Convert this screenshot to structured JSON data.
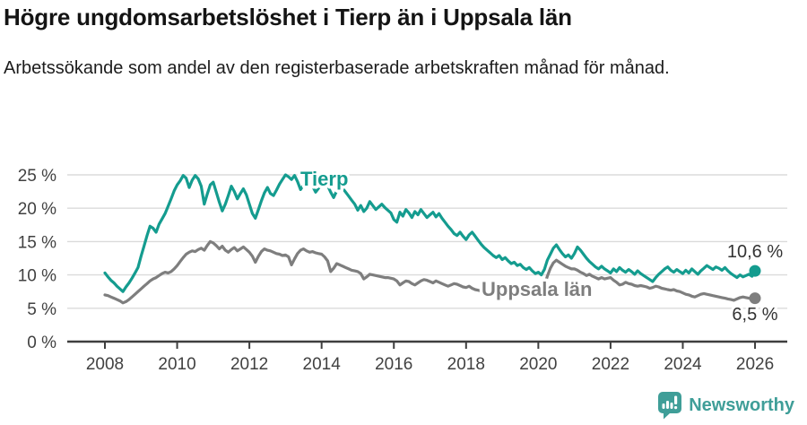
{
  "header": {
    "title": "Högre ungdomsarbetslöshet i Tierp än i Uppsala län",
    "subtitle": "Arbetssökande som andel av den registerbaserade arbetskraften månad för månad."
  },
  "colors": {
    "tierp": "#149c8f",
    "uppsala": "#7e7e7e",
    "grid": "#dbdbdb",
    "axis": "#3e3e3e",
    "tick_text": "#414141",
    "end_label_text": "#333333",
    "logo": "#3f9e98"
  },
  "chart_data": {
    "type": "line",
    "x_start_year": 2008,
    "points_per_year": 12,
    "x_tick_labels": [
      "2008",
      "2010",
      "2012",
      "2014",
      "2016",
      "2018",
      "2020",
      "2022",
      "2024",
      "2026"
    ],
    "y_tick_labels": [
      "0 %",
      "5 %",
      "10 %",
      "15 %",
      "20 %",
      "25 %"
    ],
    "y_tick_values": [
      0,
      5,
      10,
      15,
      20,
      25
    ],
    "ylim": [
      0,
      25
    ],
    "grid": "horizontal-only",
    "legend_position": "inline-labels",
    "series": [
      {
        "name": "Tierp",
        "label": "Tierp",
        "end_label": "10,6 %",
        "end_value": 10.6,
        "color_key": "tierp",
        "values": [
          10.3,
          9.7,
          9.2,
          8.8,
          8.3,
          7.9,
          7.5,
          8.2,
          8.8,
          9.5,
          10.3,
          11.1,
          12.8,
          14.3,
          15.9,
          17.3,
          17.0,
          16.4,
          17.6,
          18.4,
          19.2,
          20.3,
          21.4,
          22.6,
          23.5,
          24.1,
          24.9,
          24.5,
          23.1,
          24.2,
          24.9,
          24.4,
          23.3,
          20.6,
          22.1,
          23.5,
          23.9,
          22.4,
          20.9,
          19.6,
          20.6,
          21.9,
          23.3,
          22.5,
          21.4,
          22.2,
          22.9,
          22.0,
          20.6,
          19.2,
          18.5,
          19.8,
          21.1,
          22.3,
          23.1,
          22.2,
          21.9,
          22.7,
          23.6,
          24.3,
          25.0,
          24.7,
          24.3,
          24.9,
          24.0,
          22.8,
          23.5,
          24.8,
          24.6,
          23.3,
          22.4,
          23.0,
          23.6,
          24.4,
          23.4,
          22.4,
          21.6,
          22.6,
          23.5,
          23.0,
          22.4,
          21.8,
          21.2,
          20.6,
          19.7,
          20.4,
          19.5,
          20.0,
          21.0,
          20.4,
          19.8,
          20.2,
          20.6,
          20.1,
          19.7,
          19.3,
          18.3,
          17.9,
          19.4,
          18.8,
          19.8,
          19.3,
          18.6,
          19.5,
          19.0,
          19.8,
          19.2,
          18.6,
          19.0,
          19.4,
          18.7,
          19.2,
          18.5,
          17.9,
          17.3,
          16.8,
          16.2,
          15.9,
          16.4,
          15.8,
          15.3,
          16.0,
          16.4,
          15.8,
          15.2,
          14.6,
          14.1,
          13.7,
          13.3,
          12.9,
          12.6,
          12.9,
          12.3,
          12.6,
          12.1,
          11.7,
          11.9,
          11.4,
          11.6,
          11.1,
          10.8,
          11.1,
          10.6,
          10.2,
          10.4,
          10.0,
          10.8,
          12.2,
          13.1,
          14.0,
          14.5,
          13.8,
          13.2,
          12.7,
          13.0,
          12.5,
          13.2,
          14.2,
          13.7,
          13.1,
          12.5,
          12.0,
          11.6,
          11.2,
          10.9,
          11.3,
          10.9,
          10.6,
          10.3,
          10.9,
          10.5,
          11.1,
          10.7,
          10.4,
          10.8,
          10.5,
          10.1,
          10.6,
          10.2,
          9.9,
          9.6,
          9.3,
          9.0,
          9.6,
          10.1,
          10.5,
          10.9,
          11.2,
          10.7,
          10.4,
          10.8,
          10.5,
          10.2,
          10.7,
          10.3,
          10.9,
          10.5,
          10.1,
          10.6,
          11.0,
          11.4,
          11.1,
          10.8,
          11.2,
          11.0,
          10.7,
          11.1,
          10.6,
          10.2,
          9.9,
          9.6,
          10.0,
          9.7,
          9.9,
          10.1,
          9.8,
          10.6
        ]
      },
      {
        "name": "Uppsala län",
        "label": "Uppsala län",
        "end_label": "6,5 %",
        "end_value": 6.5,
        "color_key": "uppsala",
        "values": [
          7.0,
          6.9,
          6.7,
          6.5,
          6.3,
          6.1,
          5.8,
          6.0,
          6.3,
          6.7,
          7.1,
          7.5,
          7.9,
          8.3,
          8.7,
          9.1,
          9.4,
          9.6,
          9.9,
          10.2,
          10.4,
          10.3,
          10.5,
          10.9,
          11.4,
          12.0,
          12.6,
          13.1,
          13.4,
          13.6,
          13.5,
          13.8,
          14.0,
          13.7,
          14.4,
          15.0,
          14.8,
          14.4,
          13.9,
          14.3,
          13.7,
          13.4,
          13.8,
          14.1,
          13.6,
          13.9,
          14.2,
          13.8,
          13.4,
          12.8,
          11.9,
          12.8,
          13.5,
          13.9,
          13.7,
          13.6,
          13.4,
          13.2,
          13.1,
          12.9,
          13.0,
          12.7,
          11.5,
          12.4,
          13.2,
          13.7,
          13.9,
          13.6,
          13.4,
          13.5,
          13.3,
          13.2,
          13.1,
          12.7,
          12.1,
          10.5,
          11.0,
          11.7,
          11.5,
          11.3,
          11.1,
          10.9,
          10.7,
          10.6,
          10.5,
          10.2,
          9.4,
          9.7,
          10.1,
          10.0,
          9.9,
          9.8,
          9.7,
          9.6,
          9.6,
          9.5,
          9.4,
          9.1,
          8.5,
          8.8,
          9.1,
          9.0,
          8.7,
          8.5,
          8.8,
          9.1,
          9.3,
          9.2,
          9.0,
          8.8,
          9.1,
          8.9,
          8.7,
          8.5,
          8.3,
          8.5,
          8.7,
          8.6,
          8.4,
          8.2,
          8.1,
          8.3,
          8.0,
          7.8,
          7.7,
          7.6,
          7.5,
          7.4,
          7.3,
          7.4,
          7.3,
          7.2,
          7.2,
          7.3,
          7.1,
          7.0,
          7.0,
          6.9,
          7.0,
          6.9,
          6.8,
          6.9,
          7.0,
          7.1,
          7.3,
          7.5,
          8.4,
          9.8,
          11.0,
          11.8,
          12.2,
          11.9,
          11.6,
          11.3,
          11.1,
          10.9,
          10.9,
          10.7,
          10.4,
          10.2,
          9.9,
          10.1,
          9.8,
          9.6,
          9.4,
          9.6,
          9.4,
          9.5,
          9.6,
          9.2,
          8.9,
          8.5,
          8.6,
          8.9,
          8.7,
          8.6,
          8.4,
          8.3,
          8.4,
          8.3,
          8.2,
          8.0,
          8.1,
          8.3,
          8.2,
          8.0,
          7.9,
          7.8,
          7.7,
          7.8,
          7.6,
          7.5,
          7.3,
          7.1,
          7.0,
          6.8,
          6.7,
          6.9,
          7.1,
          7.2,
          7.1,
          7.0,
          6.9,
          6.8,
          6.7,
          6.6,
          6.5,
          6.4,
          6.3,
          6.2,
          6.4,
          6.6,
          6.7,
          6.6,
          6.5,
          6.4,
          6.5
        ]
      }
    ]
  },
  "footer": {
    "brand": "Newsworthy"
  }
}
